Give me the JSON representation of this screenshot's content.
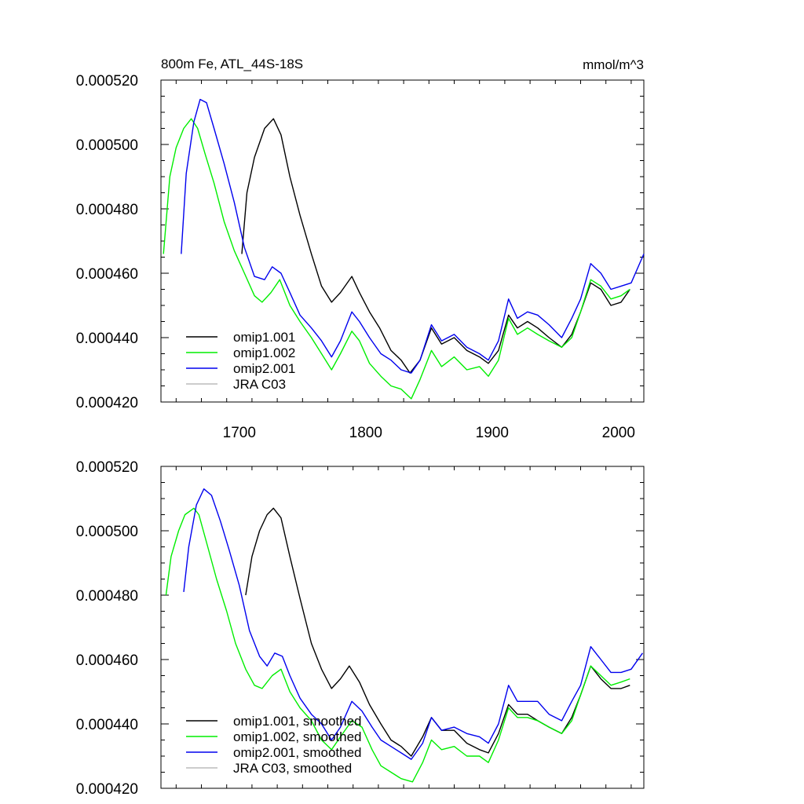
{
  "colors": {
    "omip1_001": "#000000",
    "omip1_002": "#00ee00",
    "omip2_001": "#0000ee",
    "jra_c03": "#bbbbbb"
  },
  "chart_data": [
    {
      "type": "line",
      "title": "800m Fe, ATL_44S-18S",
      "units": "mmol/m^3",
      "xlim": [
        1638,
        2020
      ],
      "ylim": [
        0.00042,
        0.00052
      ],
      "x_ticks": [
        "1700",
        "1800",
        "1900",
        "2000"
      ],
      "y_ticks": [
        "0.000520",
        "0.000500",
        "0.000480",
        "0.000460",
        "0.000440",
        "0.000420"
      ],
      "legend_position": "bottom-left",
      "series": [
        {
          "name": "omip1.001",
          "color_key": "omip1_001",
          "x": [
            1702,
            1706,
            1712,
            1720,
            1727,
            1733,
            1740,
            1748,
            1757,
            1765,
            1773,
            1780,
            1789,
            1795,
            1803,
            1811,
            1820,
            1828,
            1835,
            1843,
            1852,
            1860,
            1870,
            1880,
            1890,
            1897,
            1905,
            1913,
            1920,
            1928,
            1936,
            1945,
            1955,
            1963,
            1970,
            1978,
            1986,
            1994,
            2002,
            2009
          ],
          "values": [
            0.000466,
            0.000485,
            0.000496,
            0.000505,
            0.000508,
            0.000503,
            0.00049,
            0.000478,
            0.000466,
            0.000456,
            0.000451,
            0.000454,
            0.000459,
            0.000454,
            0.000448,
            0.000443,
            0.000436,
            0.000433,
            0.000429,
            0.000433,
            0.000443,
            0.000438,
            0.00044,
            0.000436,
            0.000434,
            0.000432,
            0.000436,
            0.000447,
            0.000443,
            0.000445,
            0.000443,
            0.00044,
            0.000437,
            0.000441,
            0.000448,
            0.000457,
            0.000455,
            0.00045,
            0.000451,
            0.000455
          ]
        },
        {
          "name": "omip1.002",
          "color_key": "omip1_002",
          "x": [
            1640,
            1645,
            1650,
            1656,
            1662,
            1667,
            1673,
            1680,
            1688,
            1696,
            1704,
            1712,
            1718,
            1725,
            1732,
            1740,
            1748,
            1757,
            1765,
            1773,
            1780,
            1789,
            1795,
            1803,
            1812,
            1820,
            1828,
            1836,
            1843,
            1852,
            1860,
            1870,
            1880,
            1890,
            1897,
            1905,
            1913,
            1920,
            1928,
            1936,
            1945,
            1955,
            1963,
            1970,
            1978,
            1986,
            1994,
            2002,
            2009
          ],
          "values": [
            0.000466,
            0.00049,
            0.000499,
            0.000505,
            0.000508,
            0.000505,
            0.000497,
            0.000488,
            0.000476,
            0.000467,
            0.00046,
            0.000453,
            0.000451,
            0.000454,
            0.000458,
            0.00045,
            0.000445,
            0.00044,
            0.000435,
            0.00043,
            0.000435,
            0.000442,
            0.000439,
            0.000432,
            0.000428,
            0.000425,
            0.000424,
            0.000421,
            0.000427,
            0.000436,
            0.000431,
            0.000434,
            0.00043,
            0.000431,
            0.000428,
            0.000433,
            0.000446,
            0.000441,
            0.000443,
            0.000441,
            0.000439,
            0.000437,
            0.00044,
            0.000448,
            0.000458,
            0.000456,
            0.000452,
            0.000453,
            0.000455
          ]
        },
        {
          "name": "omip2.001",
          "color_key": "omip2_001",
          "x": [
            1654,
            1658,
            1664,
            1669,
            1674,
            1680,
            1688,
            1696,
            1704,
            1712,
            1720,
            1726,
            1733,
            1740,
            1748,
            1757,
            1765,
            1773,
            1780,
            1789,
            1795,
            1803,
            1812,
            1820,
            1828,
            1836,
            1843,
            1852,
            1860,
            1870,
            1880,
            1890,
            1897,
            1905,
            1913,
            1920,
            1928,
            1936,
            1945,
            1955,
            1963,
            1970,
            1978,
            1986,
            1994,
            2002,
            2010,
            2020
          ],
          "values": [
            0.000466,
            0.000491,
            0.000507,
            0.000514,
            0.000513,
            0.000505,
            0.000494,
            0.000482,
            0.000468,
            0.000459,
            0.000458,
            0.000462,
            0.00046,
            0.000454,
            0.000447,
            0.000443,
            0.000439,
            0.000434,
            0.000439,
            0.000448,
            0.000445,
            0.00044,
            0.000435,
            0.000433,
            0.00043,
            0.000429,
            0.000433,
            0.000444,
            0.000439,
            0.000441,
            0.000437,
            0.000435,
            0.000433,
            0.000439,
            0.000452,
            0.000446,
            0.000448,
            0.000447,
            0.000444,
            0.00044,
            0.000446,
            0.000452,
            0.000463,
            0.00046,
            0.000455,
            0.000456,
            0.000457,
            0.000466
          ]
        },
        {
          "name": "JRA C03",
          "color_key": "jra_c03",
          "x": [],
          "values": []
        }
      ]
    },
    {
      "type": "line",
      "title": "",
      "units": "",
      "xlim": [
        1638,
        2020
      ],
      "ylim": [
        0.00042,
        0.00052
      ],
      "x_ticks": [],
      "y_ticks": [
        "0.000520",
        "0.000500",
        "0.000480",
        "0.000460",
        "0.000440",
        "0.000420"
      ],
      "legend_position": "bottom-left",
      "series": [
        {
          "name": "omip1.001, smoothed",
          "color_key": "omip1_001",
          "x": [
            1705,
            1710,
            1716,
            1722,
            1727,
            1733,
            1740,
            1748,
            1757,
            1765,
            1773,
            1780,
            1787,
            1795,
            1803,
            1812,
            1820,
            1828,
            1836,
            1845,
            1852,
            1860,
            1870,
            1880,
            1890,
            1897,
            1905,
            1913,
            1920,
            1928,
            1936,
            1945,
            1955,
            1963,
            1970,
            1978,
            1986,
            1994,
            2002,
            2009
          ],
          "values": [
            0.00048,
            0.000492,
            0.0005,
            0.000505,
            0.000507,
            0.000504,
            0.000492,
            0.000479,
            0.000465,
            0.000457,
            0.000451,
            0.000454,
            0.000458,
            0.000453,
            0.000446,
            0.00044,
            0.000435,
            0.000433,
            0.00043,
            0.000436,
            0.000442,
            0.000438,
            0.000438,
            0.000434,
            0.000432,
            0.000431,
            0.000437,
            0.000446,
            0.000443,
            0.000443,
            0.000441,
            0.000439,
            0.000437,
            0.000442,
            0.000449,
            0.000458,
            0.000454,
            0.000451,
            0.000451,
            0.000452
          ]
        },
        {
          "name": "omip1.002, smoothed",
          "color_key": "omip1_002",
          "x": [
            1642,
            1646,
            1652,
            1657,
            1664,
            1668,
            1675,
            1682,
            1690,
            1697,
            1705,
            1712,
            1718,
            1726,
            1733,
            1740,
            1748,
            1757,
            1765,
            1773,
            1780,
            1789,
            1797,
            1805,
            1812,
            1820,
            1828,
            1837,
            1845,
            1852,
            1860,
            1870,
            1880,
            1890,
            1897,
            1905,
            1913,
            1920,
            1928,
            1936,
            1945,
            1955,
            1963,
            1970,
            1978,
            1986,
            1994,
            2002,
            2009
          ],
          "values": [
            0.00048,
            0.000492,
            0.0005,
            0.000505,
            0.000507,
            0.000505,
            0.000495,
            0.000485,
            0.000475,
            0.000465,
            0.000457,
            0.000452,
            0.000451,
            0.000455,
            0.000457,
            0.00045,
            0.000445,
            0.000441,
            0.000435,
            0.000432,
            0.000436,
            0.000441,
            0.000439,
            0.000432,
            0.000427,
            0.000425,
            0.000423,
            0.000422,
            0.000428,
            0.000435,
            0.000432,
            0.000433,
            0.00043,
            0.00043,
            0.000428,
            0.000435,
            0.000445,
            0.000442,
            0.000442,
            0.000441,
            0.000439,
            0.000437,
            0.000441,
            0.000449,
            0.000458,
            0.000455,
            0.000452,
            0.000453,
            0.000454
          ]
        },
        {
          "name": "omip2.001, smoothed",
          "color_key": "omip2_001",
          "x": [
            1656,
            1660,
            1666,
            1672,
            1678,
            1685,
            1692,
            1700,
            1708,
            1716,
            1722,
            1728,
            1734,
            1740,
            1748,
            1757,
            1765,
            1773,
            1780,
            1789,
            1797,
            1805,
            1812,
            1820,
            1828,
            1836,
            1845,
            1852,
            1860,
            1870,
            1880,
            1890,
            1897,
            1905,
            1913,
            1920,
            1928,
            1936,
            1945,
            1955,
            1963,
            1970,
            1978,
            1986,
            1994,
            2002,
            2010,
            2019
          ],
          "values": [
            0.000481,
            0.000495,
            0.000508,
            0.000513,
            0.000511,
            0.000503,
            0.000494,
            0.000483,
            0.000469,
            0.000461,
            0.000458,
            0.000462,
            0.000461,
            0.000455,
            0.000448,
            0.000443,
            0.00044,
            0.000435,
            0.000439,
            0.000447,
            0.000444,
            0.000439,
            0.000435,
            0.000433,
            0.000431,
            0.000429,
            0.000434,
            0.000442,
            0.000438,
            0.000439,
            0.000437,
            0.000436,
            0.000434,
            0.00044,
            0.000452,
            0.000447,
            0.000447,
            0.000447,
            0.000443,
            0.000441,
            0.000447,
            0.000452,
            0.000464,
            0.00046,
            0.000456,
            0.000456,
            0.000457,
            0.000462
          ]
        },
        {
          "name": "JRA C03, smoothed",
          "color_key": "jra_c03",
          "x": [],
          "values": []
        }
      ]
    }
  ]
}
